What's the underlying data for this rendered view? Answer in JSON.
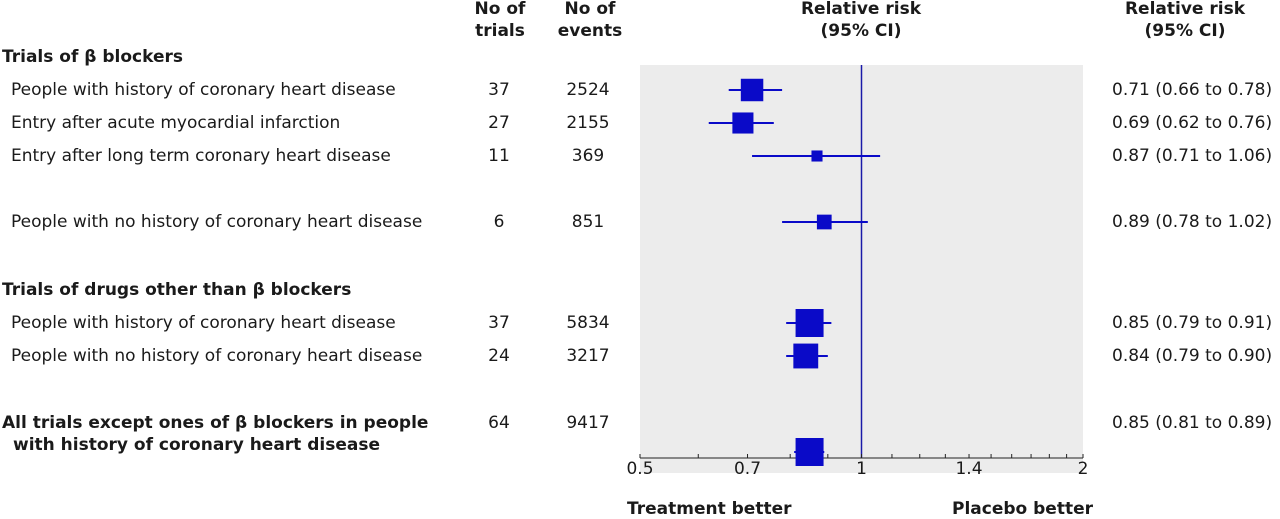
{
  "headers": {
    "trials": [
      "No of",
      "trials"
    ],
    "events": [
      "No of",
      "events"
    ],
    "rr_plot": [
      "Relative risk",
      "(95% CI)"
    ],
    "rr_text": [
      "Relative risk",
      "(95% CI)"
    ]
  },
  "sections": [
    {
      "title": "Trials of β blockers"
    },
    {
      "title": "Trials of drugs other than β blockers"
    }
  ],
  "rows": [
    {
      "label": "People with history of coronary heart disease",
      "trials": "37",
      "events": "2524",
      "ci_text": "0.71 (0.66 to 0.78)"
    },
    {
      "label": "Entry after acute myocardial infarction",
      "trials": "27",
      "events": "2155",
      "ci_text": "0.69 (0.62 to 0.76)"
    },
    {
      "label": "Entry after long term coronary heart disease",
      "trials": "11",
      "events": "369",
      "ci_text": "0.87 (0.71 to 1.06)"
    },
    {
      "label": "People with no history of coronary heart disease",
      "trials": "6",
      "events": "851",
      "ci_text": "0.89 (0.78 to 1.02)"
    },
    {
      "label": "People with history of coronary heart disease",
      "trials": "37",
      "events": "5834",
      "ci_text": "0.85 (0.79 to 0.91)"
    },
    {
      "label": "People with no history of coronary heart disease",
      "trials": "24",
      "events": "3217",
      "ci_text": "0.84 (0.79 to 0.90)"
    },
    {
      "label": "All trials except ones of β blockers in people",
      "label2": "with history of coronary heart disease",
      "trials": "64",
      "events": "9417",
      "ci_text": "0.85 (0.81 to 0.89)"
    }
  ],
  "axis": {
    "ticks": [
      "0.5",
      "0.7",
      "1",
      "1.4",
      "2"
    ],
    "left_label": "Treatment better",
    "right_label": "Placebo better"
  },
  "chart_data": {
    "type": "forest",
    "x_scale": "log",
    "xlim": [
      0.5,
      2
    ],
    "reference_line": 1,
    "grid": false,
    "colors": {
      "marker": "#0a0ac8",
      "panel": "#ececec",
      "reference": "#1a1aa8"
    },
    "ticks": [
      0.5,
      0.7,
      1,
      1.4,
      2
    ],
    "points": [
      {
        "label": "People with history of coronary heart disease",
        "rr": 0.71,
        "lo": 0.66,
        "hi": 0.78,
        "weight": 2524
      },
      {
        "label": "Entry after acute myocardial infarction",
        "rr": 0.69,
        "lo": 0.62,
        "hi": 0.76,
        "weight": 2155
      },
      {
        "label": "Entry after long term coronary heart disease",
        "rr": 0.87,
        "lo": 0.71,
        "hi": 1.06,
        "weight": 369
      },
      {
        "label": "People with no history of coronary heart disease",
        "rr": 0.89,
        "lo": 0.78,
        "hi": 1.02,
        "weight": 851
      },
      {
        "label": "People with history of coronary heart disease",
        "rr": 0.85,
        "lo": 0.79,
        "hi": 0.91,
        "weight": 5834
      },
      {
        "label": "People with no history of coronary heart disease",
        "rr": 0.84,
        "lo": 0.79,
        "hi": 0.9,
        "weight": 3217
      },
      {
        "label": "All trials except ones of β blockers in people with history of coronary heart disease",
        "rr": 0.85,
        "lo": 0.81,
        "hi": 0.89,
        "weight": 9417
      }
    ]
  }
}
